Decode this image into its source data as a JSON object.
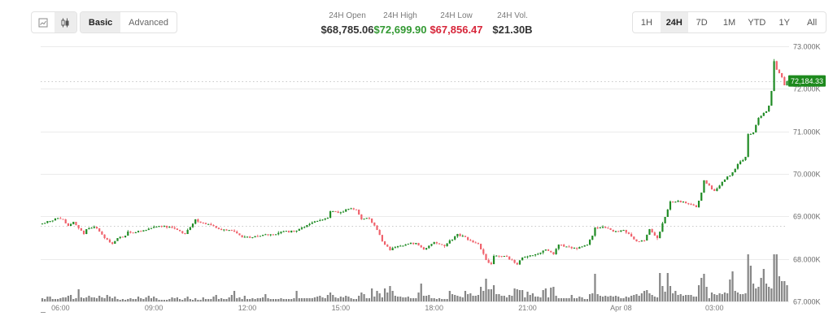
{
  "toolbar": {
    "chart_types": [
      {
        "id": "line",
        "icon": "line-chart-icon",
        "active": false
      },
      {
        "id": "candlestick",
        "icon": "candlestick-icon",
        "active": true
      }
    ],
    "modes": [
      {
        "label": "Basic",
        "active": true
      },
      {
        "label": "Advanced",
        "active": false
      }
    ]
  },
  "stats": [
    {
      "label": "24H Open",
      "value": "$68,785.06",
      "color": "#333333"
    },
    {
      "label": "24H High",
      "value": "$72,699.90",
      "color": "#339933"
    },
    {
      "label": "24H Low",
      "value": "$67,856.47",
      "color": "#d7263a"
    },
    {
      "label": "24H Vol.",
      "value": "$21.30B",
      "color": "#333333"
    }
  ],
  "periods": [
    {
      "label": "1H",
      "active": false
    },
    {
      "label": "24H",
      "active": true
    },
    {
      "label": "7D",
      "active": false
    },
    {
      "label": "1M",
      "active": false
    },
    {
      "label": "YTD",
      "active": false
    },
    {
      "label": "1Y",
      "active": false
    },
    {
      "label": "All",
      "active": false
    }
  ],
  "colors": {
    "up": "#1f8b24",
    "down": "#f0626c",
    "volume": "#858585",
    "grid": "#ebebeb",
    "dotted": "#c9c9c9",
    "axis_text": "#6b6b6b",
    "price_tag_bg": "#1e8a1e",
    "price_tag_text": "#ffffff"
  },
  "chart_data": {
    "type": "candlestick",
    "title": "",
    "xlabel": "",
    "ylabel": "",
    "interval": "5m",
    "candle_count": 288,
    "ylim": [
      67000,
      73000
    ],
    "y_ticks": [
      73000,
      72000,
      71000,
      70000,
      69000,
      68000,
      67000
    ],
    "y_tick_labels": [
      "73.000K",
      "72.000K",
      "71.000K",
      "70.000K",
      "69.000K",
      "68.000K",
      "67.000K"
    ],
    "x_ticks": [
      {
        "index": 7,
        "label": "06:00"
      },
      {
        "index": 43,
        "label": "09:00"
      },
      {
        "index": 79,
        "label": "12:00"
      },
      {
        "index": 115,
        "label": "15:00"
      },
      {
        "index": 151,
        "label": "18:00"
      },
      {
        "index": 187,
        "label": "21:00"
      },
      {
        "index": 223,
        "label": "Apr 08"
      },
      {
        "index": 259,
        "label": "03:00"
      }
    ],
    "grid": true,
    "legend": null,
    "open_price": 68785.06,
    "high": {
      "index": 282,
      "value": 72699.9
    },
    "low": {
      "index": 183,
      "value": 67856.47
    },
    "last_price": 72184.33,
    "last_price_label": "72,184.33",
    "close_waypoints": [
      [
        0,
        68834
      ],
      [
        3,
        68891
      ],
      [
        5,
        68949
      ],
      [
        8,
        68930
      ],
      [
        10,
        68777
      ],
      [
        12,
        68872
      ],
      [
        13,
        68796
      ],
      [
        16,
        68586
      ],
      [
        17,
        68700
      ],
      [
        20,
        68758
      ],
      [
        22,
        68643
      ],
      [
        24,
        68490
      ],
      [
        27,
        68356
      ],
      [
        29,
        68490
      ],
      [
        32,
        68547
      ],
      [
        33,
        68643
      ],
      [
        36,
        68624
      ],
      [
        40,
        68681
      ],
      [
        44,
        68758
      ],
      [
        49,
        68758
      ],
      [
        52,
        68681
      ],
      [
        55,
        68586
      ],
      [
        56,
        68681
      ],
      [
        59,
        68930
      ],
      [
        61,
        68853
      ],
      [
        65,
        68796
      ],
      [
        69,
        68681
      ],
      [
        74,
        68643
      ],
      [
        77,
        68509
      ],
      [
        81,
        68509
      ],
      [
        85,
        68566
      ],
      [
        89,
        68566
      ],
      [
        92,
        68643
      ],
      [
        97,
        68643
      ],
      [
        102,
        68796
      ],
      [
        106,
        68891
      ],
      [
        110,
        68968
      ],
      [
        111,
        69120
      ],
      [
        114,
        69082
      ],
      [
        118,
        69178
      ],
      [
        121,
        69159
      ],
      [
        123,
        68930
      ],
      [
        126,
        68949
      ],
      [
        129,
        68681
      ],
      [
        131,
        68414
      ],
      [
        134,
        68204
      ],
      [
        137,
        68299
      ],
      [
        141,
        68356
      ],
      [
        144,
        68376
      ],
      [
        147,
        68222
      ],
      [
        151,
        68394
      ],
      [
        155,
        68299
      ],
      [
        160,
        68586
      ],
      [
        165,
        68433
      ],
      [
        168,
        68356
      ],
      [
        171,
        67974
      ],
      [
        173,
        67878
      ],
      [
        174,
        68070
      ],
      [
        178,
        68070
      ],
      [
        181,
        67974
      ],
      [
        183,
        67870
      ],
      [
        185,
        68031
      ],
      [
        190,
        68108
      ],
      [
        194,
        68222
      ],
      [
        197,
        68108
      ],
      [
        199,
        68337
      ],
      [
        206,
        68242
      ],
      [
        210,
        68337
      ],
      [
        212,
        68547
      ],
      [
        213,
        68738
      ],
      [
        216,
        68758
      ],
      [
        220,
        68643
      ],
      [
        224,
        68681
      ],
      [
        229,
        68414
      ],
      [
        232,
        68433
      ],
      [
        234,
        68700
      ],
      [
        237,
        68490
      ],
      [
        240,
        68987
      ],
      [
        242,
        69350
      ],
      [
        245,
        69369
      ],
      [
        249,
        69293
      ],
      [
        252,
        69216
      ],
      [
        254,
        69560
      ],
      [
        255,
        69847
      ],
      [
        258,
        69637
      ],
      [
        259,
        69598
      ],
      [
        263,
        69866
      ],
      [
        266,
        70038
      ],
      [
        268,
        70229
      ],
      [
        271,
        70401
      ],
      [
        272,
        70936
      ],
      [
        274,
        70974
      ],
      [
        276,
        71318
      ],
      [
        279,
        71471
      ],
      [
        280,
        71605
      ],
      [
        281,
        71949
      ],
      [
        282,
        72650
      ],
      [
        283,
        72450
      ],
      [
        284,
        72369
      ],
      [
        285,
        72274
      ],
      [
        286,
        72083
      ],
      [
        287,
        72184.33
      ]
    ],
    "volume_unit": "relative",
    "volume": [
      4,
      3,
      6,
      6,
      3,
      3,
      3,
      4,
      5,
      5,
      7,
      8,
      3,
      4,
      15,
      5,
      4,
      5,
      7,
      5,
      5,
      4,
      7,
      5,
      4,
      8,
      6,
      4,
      6,
      3,
      2,
      3,
      2,
      3,
      4,
      3,
      3,
      6,
      4,
      3,
      5,
      7,
      4,
      6,
      4,
      2,
      2,
      2,
      2,
      3,
      5,
      4,
      5,
      3,
      2,
      4,
      6,
      3,
      2,
      4,
      2,
      2,
      5,
      3,
      3,
      3,
      6,
      8,
      3,
      4,
      3,
      3,
      5,
      8,
      13,
      4,
      5,
      3,
      7,
      3,
      3,
      4,
      3,
      4,
      4,
      5,
      9,
      4,
      3,
      3,
      3,
      3,
      4,
      3,
      3,
      3,
      3,
      4,
      13,
      4,
      4,
      4,
      4,
      4,
      4,
      5,
      6,
      7,
      5,
      4,
      8,
      11,
      8,
      5,
      4,
      6,
      5,
      7,
      6,
      4,
      3,
      3,
      7,
      11,
      9,
      4,
      4,
      16,
      6,
      13,
      10,
      5,
      16,
      11,
      19,
      13,
      7,
      6,
      6,
      5,
      5,
      6,
      4,
      4,
      4,
      11,
      22,
      7,
      7,
      8,
      4,
      4,
      3,
      4,
      3,
      3,
      3,
      13,
      9,
      8,
      7,
      6,
      5,
      13,
      9,
      10,
      7,
      7,
      8,
      18,
      13,
      28,
      15,
      15,
      20,
      9,
      9,
      7,
      7,
      5,
      8,
      7,
      16,
      15,
      14,
      14,
      5,
      12,
      8,
      10,
      6,
      6,
      5,
      14,
      16,
      5,
      17,
      18,
      7,
      4,
      4,
      4,
      4,
      4,
      8,
      4,
      4,
      6,
      5,
      3,
      3,
      9,
      10,
      34,
      9,
      7,
      6,
      7,
      6,
      7,
      6,
      7,
      6,
      4,
      4,
      6,
      5,
      7,
      8,
      9,
      7,
      10,
      13,
      14,
      10,
      8,
      6,
      5,
      35,
      19,
      12,
      35,
      19,
      10,
      13,
      8,
      9,
      7,
      8,
      8,
      8,
      6,
      6,
      20,
      29,
      34,
      18,
      4,
      11,
      9,
      8,
      10,
      9,
      11,
      10,
      27,
      37,
      13,
      11,
      9,
      9,
      10,
      58,
      44,
      22,
      16,
      18,
      29,
      40,
      22,
      18,
      16,
      58,
      58,
      31,
      25,
      25,
      20
    ]
  }
}
